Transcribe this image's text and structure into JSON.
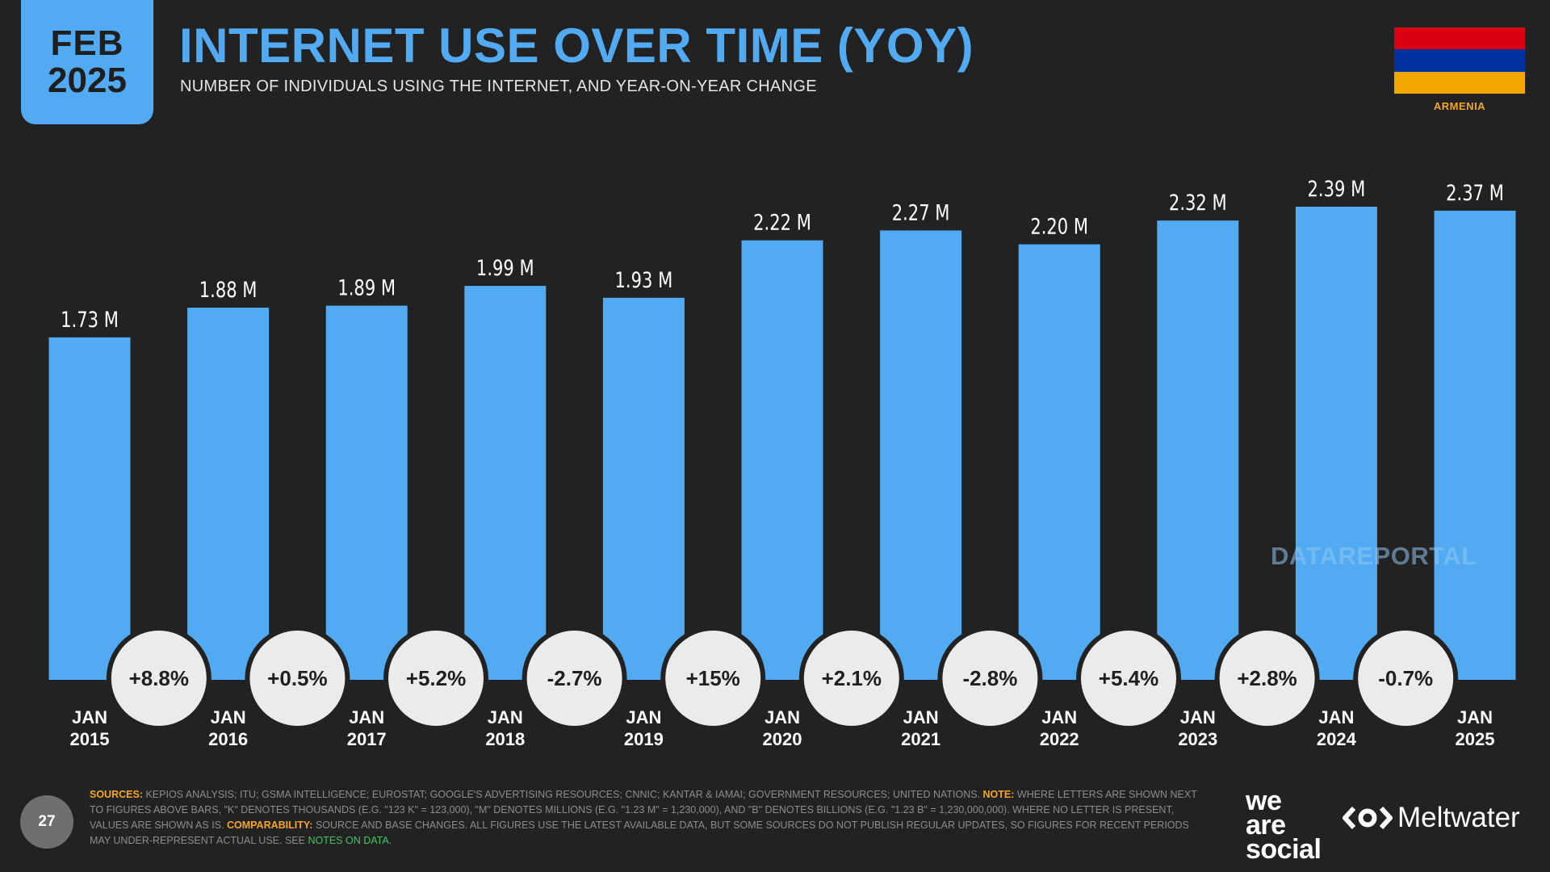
{
  "badge": {
    "month": "FEB",
    "year": "2025"
  },
  "title": "INTERNET USE OVER TIME (YOY)",
  "subtitle": "NUMBER OF INDIVIDUALS USING THE INTERNET, AND YEAR-ON-YEAR CHANGE",
  "flag": {
    "label": "ARMENIA",
    "colors": [
      "#d90012",
      "#0033a0",
      "#f2a800"
    ]
  },
  "colors": {
    "accent": "#52abf2",
    "highlight": "#f5a623",
    "notes_link": "#3ec85c",
    "background": "#222222",
    "bubble": "#ebebeb"
  },
  "watermark": "DATAREPORTAL",
  "chart_data": {
    "type": "bar",
    "title": "INTERNET USE OVER TIME (YOY)",
    "xlabel": "",
    "ylabel": "",
    "ylim": [
      0,
      2.39
    ],
    "categories": [
      [
        "JAN",
        "2015"
      ],
      [
        "JAN",
        "2016"
      ],
      [
        "JAN",
        "2017"
      ],
      [
        "JAN",
        "2018"
      ],
      [
        "JAN",
        "2019"
      ],
      [
        "JAN",
        "2020"
      ],
      [
        "JAN",
        "2021"
      ],
      [
        "JAN",
        "2022"
      ],
      [
        "JAN",
        "2023"
      ],
      [
        "JAN",
        "2024"
      ],
      [
        "JAN",
        "2025"
      ]
    ],
    "values": [
      1.73,
      1.88,
      1.89,
      1.99,
      1.93,
      2.22,
      2.27,
      2.2,
      2.32,
      2.39,
      2.37
    ],
    "value_labels": [
      "1.73 M",
      "1.88 M",
      "1.89 M",
      "1.99 M",
      "1.93 M",
      "2.22 M",
      "2.27 M",
      "2.20 M",
      "2.32 M",
      "2.39 M",
      "2.37 M"
    ],
    "yoy_change": [
      "+8.8%",
      "+0.5%",
      "+5.2%",
      "-2.7%",
      "+15%",
      "+2.1%",
      "-2.8%",
      "+5.4%",
      "+2.8%",
      "-0.7%"
    ],
    "unit": "M"
  },
  "footer": {
    "page_number": "27",
    "sources_label": "SOURCES:",
    "sources_text": " KEPIOS ANALYSIS; ITU; GSMA INTELLIGENCE; EUROSTAT; GOOGLE'S ADVERTISING RESOURCES; CNNIC; KANTAR & IAMAI; GOVERNMENT RESOURCES; UNITED NATIONS. ",
    "note_label": "NOTE:",
    "note_text": " WHERE LETTERS ARE SHOWN NEXT TO FIGURES ABOVE BARS, \"K\" DENOTES THOUSANDS (E.G. \"123 K\" = 123,000), \"M\" DENOTES MILLIONS (E.G. \"1.23 M\" = 1,230,000), AND \"B\" DENOTES BILLIONS (E.G. \"1.23 B\" = 1,230,000,000). WHERE NO LETTER IS PRESENT, VALUES ARE SHOWN AS IS. ",
    "comparability_label": "COMPARABILITY:",
    "comparability_text": " SOURCE AND BASE CHANGES. ALL FIGURES USE THE LATEST AVAILABLE DATA, BUT SOME SOURCES DO NOT PUBLISH REGULAR UPDATES, SO FIGURES FOR RECENT PERIODS MAY UNDER-REPRESENT ACTUAL USE. SEE ",
    "notes_link": "NOTES ON DATA",
    "notes_suffix": "."
  },
  "logos": {
    "we_are_social": [
      "we",
      "are",
      "social"
    ],
    "meltwater": "Meltwater"
  }
}
